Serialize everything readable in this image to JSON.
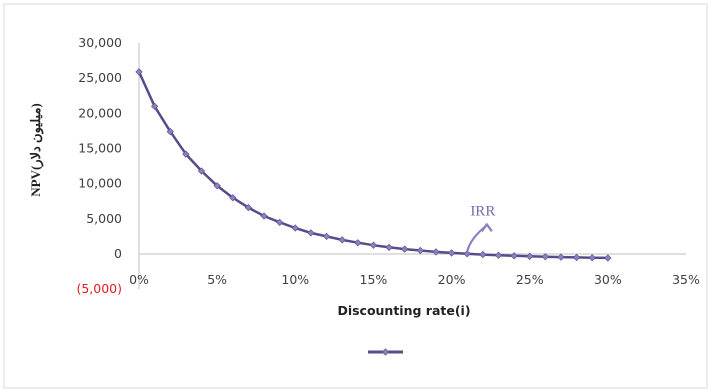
{
  "chart_data": {
    "type": "line",
    "title": "",
    "xlabel": "Discounting rate(i)",
    "ylabel": "NPV(میلیون دلار)",
    "x_ticks": [
      "0%",
      "5%",
      "10%",
      "15%",
      "20%",
      "25%",
      "30%",
      "35%"
    ],
    "y_ticks": [
      "30,000",
      "25,000",
      "20,000",
      "15,000",
      "10,000",
      "5,000",
      "0",
      "(5,000)"
    ],
    "xlim": [
      0,
      35
    ],
    "ylim": [
      -5000,
      30000
    ],
    "grid": false,
    "legend_position": "bottom",
    "series": [
      {
        "color": "#5b4a8b",
        "marker_color": "#8e7fbf",
        "x": [
          0,
          1,
          2,
          3,
          4,
          5,
          6,
          7,
          8,
          9,
          10,
          11,
          12,
          13,
          14,
          15,
          16,
          17,
          18,
          19,
          20,
          21,
          22,
          23,
          24,
          25,
          26,
          27,
          28,
          29,
          30
        ],
        "y": [
          25900,
          21000,
          17400,
          14200,
          11800,
          9700,
          8000,
          6600,
          5400,
          4500,
          3700,
          3000,
          2500,
          2000,
          1600,
          1250,
          950,
          700,
          500,
          300,
          150,
          30,
          -80,
          -180,
          -260,
          -330,
          -390,
          -440,
          -490,
          -530,
          -560
        ]
      }
    ],
    "annotations": [
      {
        "text": "IRR",
        "x": 22,
        "y": 5500,
        "arrow_to_x": 21,
        "arrow_to_y": 350
      }
    ]
  }
}
